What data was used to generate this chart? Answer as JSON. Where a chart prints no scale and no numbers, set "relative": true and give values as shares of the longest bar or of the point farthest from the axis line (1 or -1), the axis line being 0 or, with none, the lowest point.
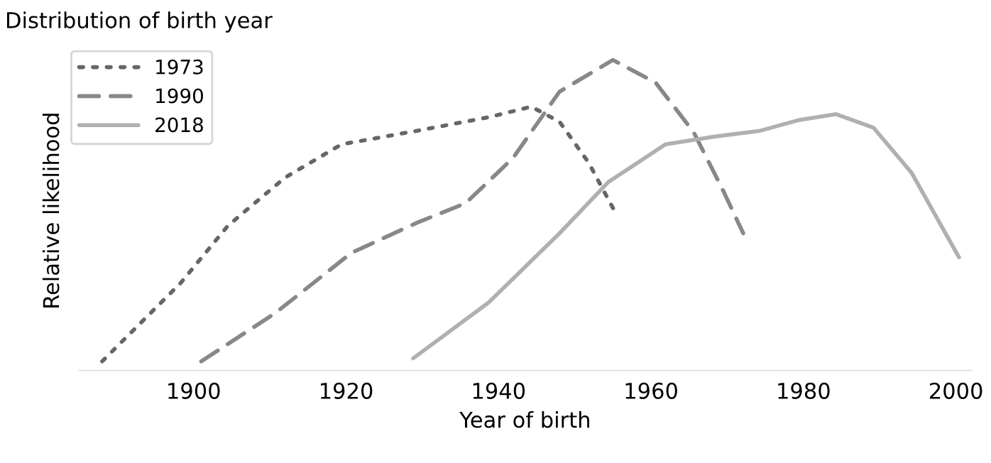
{
  "chart_data": {
    "type": "line",
    "title": "Distribution of birth year",
    "xlabel": "Year of birth",
    "ylabel": "Relative likelihood",
    "relative": true,
    "xlim": [
      1885,
      2002
    ],
    "xticks": [
      1900,
      1920,
      1940,
      1960,
      1980,
      2000
    ],
    "grid": false,
    "legend": "top left",
    "series": [
      {
        "name": "1973",
        "color": "#666666",
        "line_style": "dotted",
        "x": [
          1888,
          1898.3,
          1904.5,
          1912,
          1919.4,
          1929.3,
          1938.7,
          1944.3,
          1948,
          1951.8,
          1955.3
        ],
        "values": [
          0,
          0.26,
          0.45,
          0.61,
          0.72,
          0.765,
          0.81,
          0.845,
          0.795,
          0.66,
          0.495
        ]
      },
      {
        "name": "1990",
        "color": "#888888",
        "line_style": "dashed",
        "x": [
          1901,
          1910.7,
          1920.7,
          1929.3,
          1935.7,
          1941.9,
          1948,
          1955,
          1960.6,
          1965.6,
          1969.3,
          1972.1
        ],
        "values": [
          0,
          0.16,
          0.36,
          0.46,
          0.525,
          0.675,
          0.895,
          1,
          0.925,
          0.76,
          0.575,
          0.425
        ]
      },
      {
        "name": "2018",
        "color": "#b0b0b0",
        "line_style": "solid",
        "x": [
          1928.8,
          1938.7,
          1948,
          1954.4,
          1961.9,
          1968.1,
          1974.3,
          1979.3,
          1984.3,
          1989.2,
          1994.2,
          2000.4
        ],
        "values": [
          0.01,
          0.195,
          0.425,
          0.595,
          0.72,
          0.745,
          0.765,
          0.8,
          0.82,
          0.775,
          0.625,
          0.345
        ]
      }
    ]
  }
}
